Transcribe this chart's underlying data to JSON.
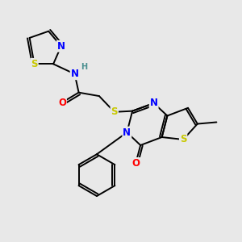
{
  "background_color": "#e8e8e8",
  "atom_colors": {
    "C": "#000000",
    "N": "#0000ff",
    "O": "#ff0000",
    "S": "#c8c800",
    "H": "#4a9090"
  },
  "bond_color": "#000000",
  "bond_width": 1.4,
  "font_size": 8.5
}
